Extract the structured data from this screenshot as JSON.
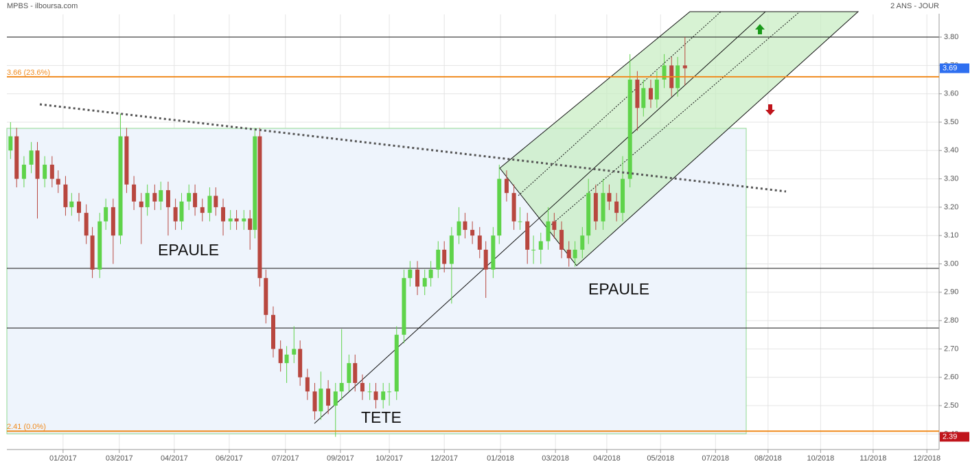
{
  "chart_data": {
    "type": "candlestick",
    "title": "MPBS - ilboursa.com",
    "subtitle": "2 ANS - JOUR",
    "annotations": [
      "EPAULE",
      "TETE",
      "EPAULE"
    ],
    "up_color": "#5fd34a",
    "down_color": "#b8473f",
    "grid": true,
    "xlim": [
      0,
      763
    ],
    "ylim": [
      2.35,
      3.88
    ],
    "xticks": [
      {
        "value": 46,
        "label": "01/2017"
      },
      {
        "value": 92,
        "label": "03/2017"
      },
      {
        "value": 137,
        "label": "04/2017"
      },
      {
        "value": 182,
        "label": "06/2017"
      },
      {
        "value": 228,
        "label": "07/2017"
      },
      {
        "value": 273,
        "label": "09/2017"
      },
      {
        "value": 313,
        "label": "10/2017"
      },
      {
        "value": 358,
        "label": "12/2017"
      },
      {
        "value": 404,
        "label": "01/2018"
      },
      {
        "value": 449,
        "label": "03/2018"
      },
      {
        "value": 491,
        "label": "04/2018"
      },
      {
        "value": 535,
        "label": "05/2018"
      },
      {
        "value": 580,
        "label": "07/2018"
      },
      {
        "value": 623,
        "label": "08/2018"
      },
      {
        "value": 666,
        "label": "10/2018"
      },
      {
        "value": 709,
        "label": "11/2018"
      },
      {
        "value": 753,
        "label": "12/2018"
      }
    ],
    "yticks": [
      {
        "value": 2.4,
        "label": "2.40"
      },
      {
        "value": 2.5,
        "label": "2.50"
      },
      {
        "value": 2.6,
        "label": "2.60"
      },
      {
        "value": 2.7,
        "label": "2.70"
      },
      {
        "value": 2.8,
        "label": "2.80"
      },
      {
        "value": 2.9,
        "label": "2.90"
      },
      {
        "value": 3.0,
        "label": "3.00"
      },
      {
        "value": 3.1,
        "label": "3.10"
      },
      {
        "value": 3.2,
        "label": "3.20"
      },
      {
        "value": 3.3,
        "label": "3.30"
      },
      {
        "value": 3.4,
        "label": "3.40"
      },
      {
        "value": 3.5,
        "label": "3.50"
      },
      {
        "value": 3.6,
        "label": "3.60"
      },
      {
        "value": 3.7,
        "label": "3.70"
      },
      {
        "value": 3.8,
        "label": "3.80"
      }
    ],
    "levels": [
      {
        "value": 3.66,
        "label": "3.66  (23.6%)",
        "color": "#f08a1c"
      },
      {
        "value": 2.41,
        "label": "2.41  (0.0%)",
        "color": "#f08a1c"
      }
    ],
    "price_tags": [
      {
        "value": 3.69,
        "color": "#2e6ff0"
      },
      {
        "value": 2.39,
        "color": "#c0141b"
      }
    ],
    "x": [
      3,
      8,
      14,
      20,
      25,
      31,
      37,
      42,
      48,
      53,
      59,
      65,
      70,
      76,
      81,
      87,
      93,
      98,
      104,
      110,
      115,
      121,
      126,
      132,
      138,
      143,
      149,
      154,
      160,
      166,
      171,
      177,
      183,
      188,
      194,
      199,
      203,
      207,
      212,
      218,
      224,
      229,
      235,
      240,
      246,
      252,
      257,
      263,
      269,
      274,
      280,
      285,
      291,
      297,
      302,
      308,
      313,
      319,
      325,
      330,
      336,
      342,
      347,
      353,
      358,
      364,
      370,
      375,
      381,
      387,
      392,
      398,
      403,
      409,
      415,
      420,
      426,
      431,
      437,
      443,
      448,
      454,
      460,
      465,
      471,
      476,
      482,
      488,
      493,
      499,
      504,
      510,
      516,
      521,
      527,
      532,
      538,
      544,
      549,
      555
    ],
    "open": [
      3.4,
      3.45,
      3.3,
      3.35,
      3.4,
      3.3,
      3.35,
      3.3,
      3.28,
      3.2,
      3.22,
      3.18,
      3.1,
      2.98,
      3.15,
      3.2,
      3.1,
      3.45,
      3.28,
      3.22,
      3.2,
      3.25,
      3.22,
      3.26,
      3.2,
      3.15,
      3.22,
      3.25,
      3.2,
      3.18,
      3.24,
      3.2,
      3.15,
      3.16,
      3.15,
      3.16,
      3.12,
      3.45,
      2.95,
      2.82,
      2.7,
      2.65,
      2.68,
      2.7,
      2.6,
      2.55,
      2.48,
      2.56,
      2.5,
      2.55,
      2.58,
      2.65,
      2.58,
      2.55,
      2.55,
      2.52,
      2.55,
      2.55,
      2.75,
      2.95,
      2.98,
      2.92,
      2.95,
      2.98,
      3.05,
      3.0,
      3.1,
      3.15,
      3.12,
      3.1,
      3.05,
      2.98,
      3.1,
      3.3,
      3.25,
      3.15,
      3.15,
      3.05,
      3.05,
      3.08,
      3.15,
      3.12,
      3.05,
      3.02,
      3.05,
      3.1,
      3.25,
      3.15,
      3.25,
      3.22,
      3.18,
      3.3,
      3.65,
      3.55,
      3.62,
      3.58,
      3.65,
      3.7,
      3.62,
      3.7
    ],
    "high": [
      3.5,
      3.48,
      3.38,
      3.43,
      3.43,
      3.38,
      3.38,
      3.33,
      3.31,
      3.25,
      3.25,
      3.21,
      3.13,
      3.18,
      3.23,
      3.23,
      3.53,
      3.48,
      3.31,
      3.25,
      3.28,
      3.28,
      3.29,
      3.29,
      3.23,
      3.25,
      3.28,
      3.28,
      3.23,
      3.27,
      3.27,
      3.23,
      3.19,
      3.19,
      3.19,
      3.19,
      3.48,
      3.48,
      2.98,
      2.85,
      2.73,
      2.71,
      2.78,
      2.73,
      2.63,
      2.58,
      2.62,
      2.59,
      2.58,
      2.77,
      2.68,
      2.68,
      2.61,
      2.58,
      2.58,
      2.58,
      2.58,
      2.78,
      2.98,
      3.01,
      3.01,
      2.98,
      3.01,
      3.08,
      3.08,
      3.13,
      3.2,
      3.18,
      3.15,
      3.13,
      3.08,
      3.13,
      3.35,
      3.33,
      3.28,
      3.2,
      3.18,
      3.1,
      3.11,
      3.2,
      3.18,
      3.15,
      3.08,
      3.08,
      3.13,
      3.3,
      3.28,
      3.3,
      3.28,
      3.25,
      3.38,
      3.74,
      3.68,
      3.65,
      3.65,
      3.68,
      3.74,
      3.73,
      3.73,
      3.8
    ],
    "low": [
      3.37,
      3.27,
      3.27,
      3.32,
      3.16,
      3.27,
      3.27,
      3.25,
      3.17,
      3.17,
      3.15,
      3.07,
      2.95,
      2.95,
      3.12,
      3.0,
      3.07,
      3.25,
      3.19,
      3.07,
      3.17,
      3.19,
      3.19,
      3.1,
      3.12,
      3.12,
      3.19,
      3.17,
      3.15,
      3.15,
      3.17,
      3.1,
      3.12,
      3.12,
      3.12,
      3.05,
      3.09,
      2.92,
      2.79,
      2.67,
      2.62,
      2.58,
      2.65,
      2.57,
      2.52,
      2.45,
      2.45,
      2.47,
      2.39,
      2.52,
      2.55,
      2.55,
      2.52,
      2.52,
      2.49,
      2.49,
      2.5,
      2.52,
      2.72,
      2.92,
      2.89,
      2.89,
      2.92,
      2.95,
      2.97,
      2.86,
      3.07,
      3.09,
      3.07,
      3.02,
      2.88,
      2.95,
      3.07,
      3.22,
      3.12,
      3.12,
      3.0,
      3.0,
      3.0,
      3.05,
      3.09,
      3.02,
      2.99,
      2.99,
      3.02,
      3.07,
      3.12,
      3.12,
      3.19,
      3.15,
      3.15,
      3.27,
      3.47,
      3.52,
      3.55,
      3.55,
      3.62,
      3.59,
      3.59,
      3.63
    ],
    "close": [
      3.45,
      3.3,
      3.35,
      3.4,
      3.3,
      3.35,
      3.3,
      3.28,
      3.2,
      3.22,
      3.18,
      3.1,
      2.98,
      3.15,
      3.2,
      3.1,
      3.45,
      3.28,
      3.22,
      3.2,
      3.25,
      3.22,
      3.26,
      3.2,
      3.15,
      3.22,
      3.25,
      3.2,
      3.18,
      3.24,
      3.2,
      3.15,
      3.16,
      3.15,
      3.16,
      3.12,
      3.45,
      2.95,
      2.82,
      2.7,
      2.65,
      2.68,
      2.7,
      2.6,
      2.55,
      2.48,
      2.56,
      2.5,
      2.55,
      2.58,
      2.65,
      2.58,
      2.55,
      2.55,
      2.52,
      2.55,
      2.55,
      2.75,
      2.95,
      2.98,
      2.92,
      2.95,
      2.98,
      3.05,
      3.0,
      3.1,
      3.15,
      3.12,
      3.1,
      3.05,
      2.98,
      3.1,
      3.3,
      3.25,
      3.15,
      3.15,
      3.05,
      3.05,
      3.08,
      3.15,
      3.12,
      3.05,
      3.02,
      3.05,
      3.1,
      3.25,
      3.15,
      3.25,
      3.22,
      3.18,
      3.3,
      3.65,
      3.55,
      3.62,
      3.58,
      3.65,
      3.7,
      3.62,
      3.7,
      3.69
    ]
  }
}
